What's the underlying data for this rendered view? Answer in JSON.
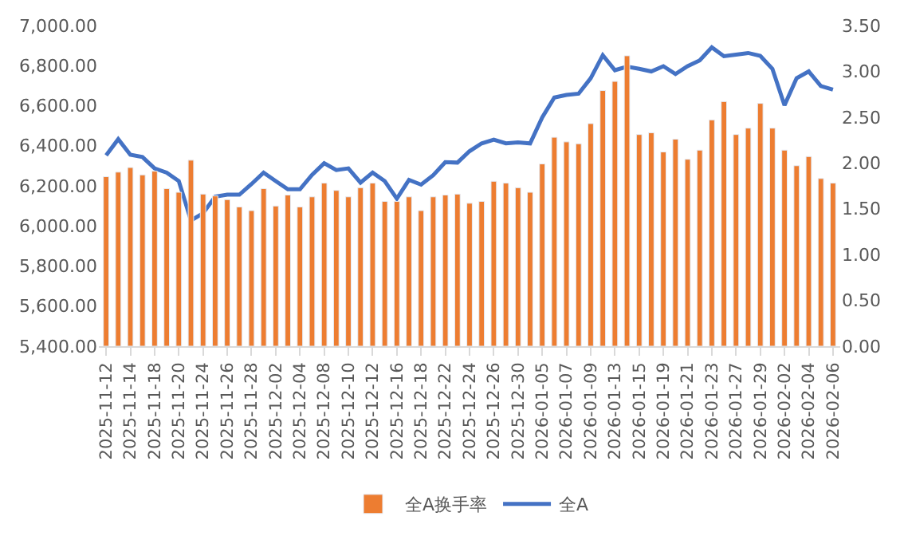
{
  "chart_data": {
    "type": "bar",
    "categories": [
      "2025-11-12",
      null,
      "2025-11-14",
      null,
      "2025-11-18",
      null,
      "2025-11-20",
      null,
      "2025-11-24",
      null,
      "2025-11-26",
      null,
      "2025-11-28",
      null,
      "2025-12-02",
      null,
      "2025-12-04",
      null,
      "2025-12-08",
      null,
      "2025-12-10",
      null,
      "2025-12-12",
      null,
      "2025-12-16",
      null,
      "2025-12-18",
      null,
      "2025-12-22",
      null,
      "2025-12-24",
      null,
      "2025-12-26",
      null,
      "2025-12-30",
      null,
      "2026-01-05",
      null,
      "2026-01-07",
      null,
      "2026-01-09",
      null,
      "2026-01-13",
      null,
      "2026-01-15",
      null,
      "2026-01-19",
      null,
      "2026-01-21",
      null,
      "2026-01-23",
      null,
      "2026-01-27",
      null,
      "2026-01-29",
      null,
      "2026-02-02",
      null,
      "2026-02-04",
      null,
      "2026-02-06"
    ],
    "series": [
      {
        "name": "全A换手率",
        "axis": "y2",
        "color": "#ed7d31",
        "values": [
          1.85,
          1.9,
          1.95,
          1.87,
          1.91,
          1.72,
          1.68,
          2.03,
          1.66,
          1.64,
          1.6,
          1.52,
          1.48,
          1.72,
          1.53,
          1.65,
          1.52,
          1.63,
          1.78,
          1.7,
          1.63,
          1.73,
          1.78,
          1.58,
          1.58,
          1.63,
          1.48,
          1.63,
          1.65,
          1.66,
          1.56,
          1.58,
          1.8,
          1.78,
          1.73,
          1.68,
          1.99,
          2.28,
          2.23,
          2.21,
          2.43,
          2.79,
          2.89,
          3.17,
          2.31,
          2.33,
          2.12,
          2.26,
          2.04,
          2.14,
          2.47,
          2.67,
          2.31,
          2.38,
          2.65,
          2.38,
          2.14,
          1.97,
          2.07,
          1.83,
          1.78
        ]
      },
      {
        "name": "全A",
        "type": "line",
        "color": "#4472c4",
        "values": [
          6352,
          6433,
          6355,
          6344,
          6287,
          6266,
          6224,
          6027,
          6063,
          6146,
          6156,
          6156,
          6209,
          6266,
          6224,
          6183,
          6183,
          6255,
          6313,
          6279,
          6287,
          6216,
          6266,
          6224,
          6136,
          6230,
          6206,
          6253,
          6318,
          6316,
          6373,
          6412,
          6430,
          6412,
          6417,
          6412,
          6542,
          6641,
          6654,
          6660,
          6737,
          6852,
          6777,
          6795,
          6784,
          6771,
          6797,
          6758,
          6797,
          6826,
          6891,
          6847,
          6855,
          6863,
          6849,
          6784,
          6602,
          6737,
          6771,
          6698,
          6680
        ]
      }
    ],
    "ylim": [
      5400,
      7000
    ],
    "yticks": [
      {
        "value": 5400,
        "label": "5,400.00"
      },
      {
        "value": 5600,
        "label": "5,600.00"
      },
      {
        "value": 5800,
        "label": "5,800.00"
      },
      {
        "value": 6000,
        "label": "6,000.00"
      },
      {
        "value": 6200,
        "label": "6,200.00"
      },
      {
        "value": 6400,
        "label": "6,400.00"
      },
      {
        "value": 6600,
        "label": "6,600.00"
      },
      {
        "value": 6800,
        "label": "6,800.00"
      },
      {
        "value": 7000,
        "label": "7,000.00"
      }
    ],
    "y2lim": [
      0,
      3.5
    ],
    "y2ticks": [
      {
        "value": 0,
        "label": "0.00"
      },
      {
        "value": 0.5,
        "label": "0.50"
      },
      {
        "value": 1,
        "label": "1.00"
      },
      {
        "value": 1.5,
        "label": "1.50"
      },
      {
        "value": 2,
        "label": "2.00"
      },
      {
        "value": 2.5,
        "label": "2.50"
      },
      {
        "value": 3,
        "label": "3.00"
      },
      {
        "value": 3.5,
        "label": "3.50"
      }
    ],
    "legend": "bottom",
    "marker": "none",
    "line_style": "solid"
  }
}
